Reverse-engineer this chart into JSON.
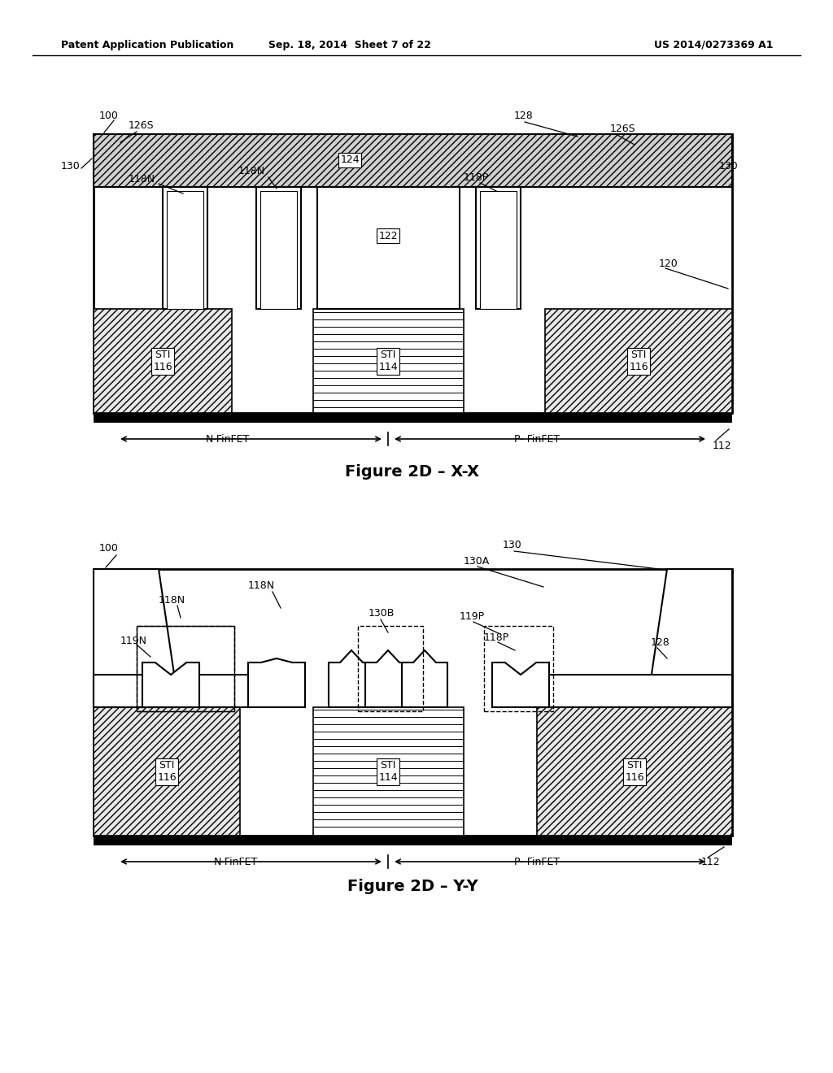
{
  "header_left": "Patent Application Publication",
  "header_mid": "Sep. 18, 2014  Sheet 7 of 22",
  "header_right": "US 2014/0273369 A1",
  "fig1_title": "Figure 2D – X-X",
  "fig2_title": "Figure 2D – Y-Y",
  "bg_color": "#ffffff"
}
